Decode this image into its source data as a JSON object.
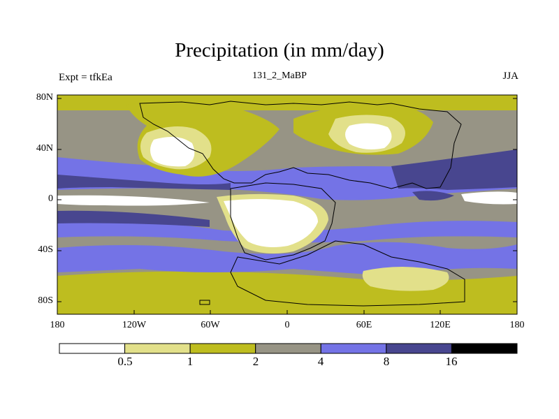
{
  "title": "Precipitation (in mm/day)",
  "experiment": "Expt = tfkEa",
  "subtitle": "131_2_MaBP",
  "season": "JJA",
  "axes": {
    "latitude_ticks": [
      "80N",
      "40N",
      "0",
      "40S",
      "80S"
    ],
    "longitude_ticks": [
      "180",
      "120W",
      "60W",
      "0",
      "60E",
      "120E",
      "180"
    ]
  },
  "colorbar": {
    "levels": [
      "0.5",
      "1",
      "2",
      "4",
      "8",
      "16"
    ],
    "colors": [
      "#ffffff",
      "#e2e08a",
      "#bebd1f",
      "#979485",
      "#7473e6",
      "#48468f",
      "#000000"
    ]
  }
}
